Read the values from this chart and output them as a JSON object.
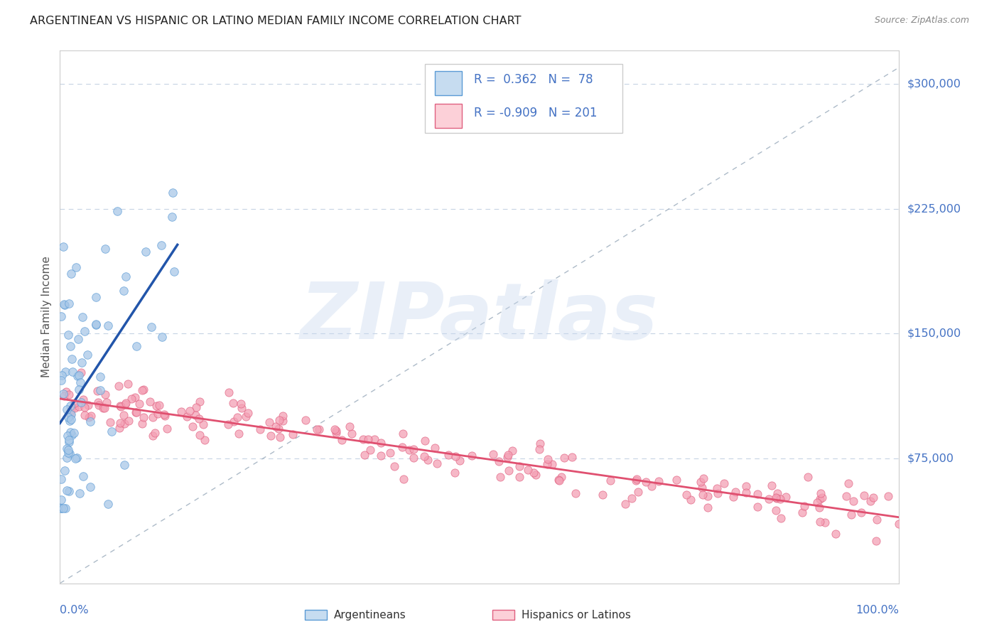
{
  "title": "ARGENTINEAN VS HISPANIC OR LATINO MEDIAN FAMILY INCOME CORRELATION CHART",
  "source": "Source: ZipAtlas.com",
  "ylabel": "Median Family Income",
  "ylim": [
    0,
    320000
  ],
  "xlim": [
    0.0,
    1.0
  ],
  "ytick_positions": [
    75000,
    150000,
    225000,
    300000
  ],
  "ytick_labels": [
    "$75,000",
    "$150,000",
    "$225,000",
    "$300,000"
  ],
  "blue_R": 0.362,
  "blue_N": 78,
  "pink_R": -0.909,
  "pink_N": 201,
  "blue_scatter_color": "#a8c8e8",
  "blue_edge_color": "#5b9bd5",
  "pink_scatter_color": "#f4a0b5",
  "pink_edge_color": "#e06080",
  "blue_line_color": "#2255aa",
  "pink_line_color": "#e05070",
  "diag_color": "#99aabb",
  "legend_blue_face": "#c6dcf0",
  "legend_pink_face": "#fcd0d8",
  "legend_border_color": "#cccccc",
  "legend_text_color": "#4472c4",
  "watermark_text": "ZIPatlas",
  "watermark_color": "#c8d8ee",
  "grid_color": "#c0cfe0",
  "tick_label_color": "#4472c4",
  "axis_label_color": "#555555",
  "title_color": "#222222",
  "source_color": "#888888",
  "background_color": "#ffffff",
  "border_color": "#cccccc"
}
